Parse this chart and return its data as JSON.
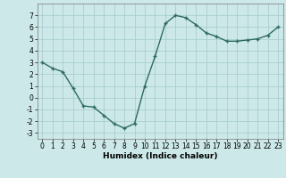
{
  "x": [
    0,
    1,
    2,
    3,
    4,
    5,
    6,
    7,
    8,
    9,
    10,
    11,
    12,
    13,
    14,
    15,
    16,
    17,
    18,
    19,
    20,
    21,
    22,
    23
  ],
  "y": [
    3.0,
    2.5,
    2.2,
    0.8,
    -0.7,
    -0.8,
    -1.5,
    -2.2,
    -2.6,
    -2.2,
    1.0,
    3.5,
    6.3,
    7.0,
    6.8,
    6.2,
    5.5,
    5.2,
    4.8,
    4.8,
    4.9,
    5.0,
    5.3,
    6.0
  ],
  "line_color": "#2e6b5e",
  "marker": "+",
  "marker_size": 3.5,
  "marker_linewidth": 1.0,
  "line_width": 1.0,
  "bg_color": "#cce8e8",
  "grid_color": "#aacece",
  "xlabel": "Humidex (Indice chaleur)",
  "ylim": [
    -3.5,
    8.0
  ],
  "xlim": [
    -0.5,
    23.5
  ],
  "yticks": [
    -3,
    -2,
    -1,
    0,
    1,
    2,
    3,
    4,
    5,
    6,
    7
  ],
  "xticks": [
    0,
    1,
    2,
    3,
    4,
    5,
    6,
    7,
    8,
    9,
    10,
    11,
    12,
    13,
    14,
    15,
    16,
    17,
    18,
    19,
    20,
    21,
    22,
    23
  ],
  "tick_fontsize": 5.5,
  "xlabel_fontsize": 6.5,
  "xlabel_fontweight": "bold"
}
